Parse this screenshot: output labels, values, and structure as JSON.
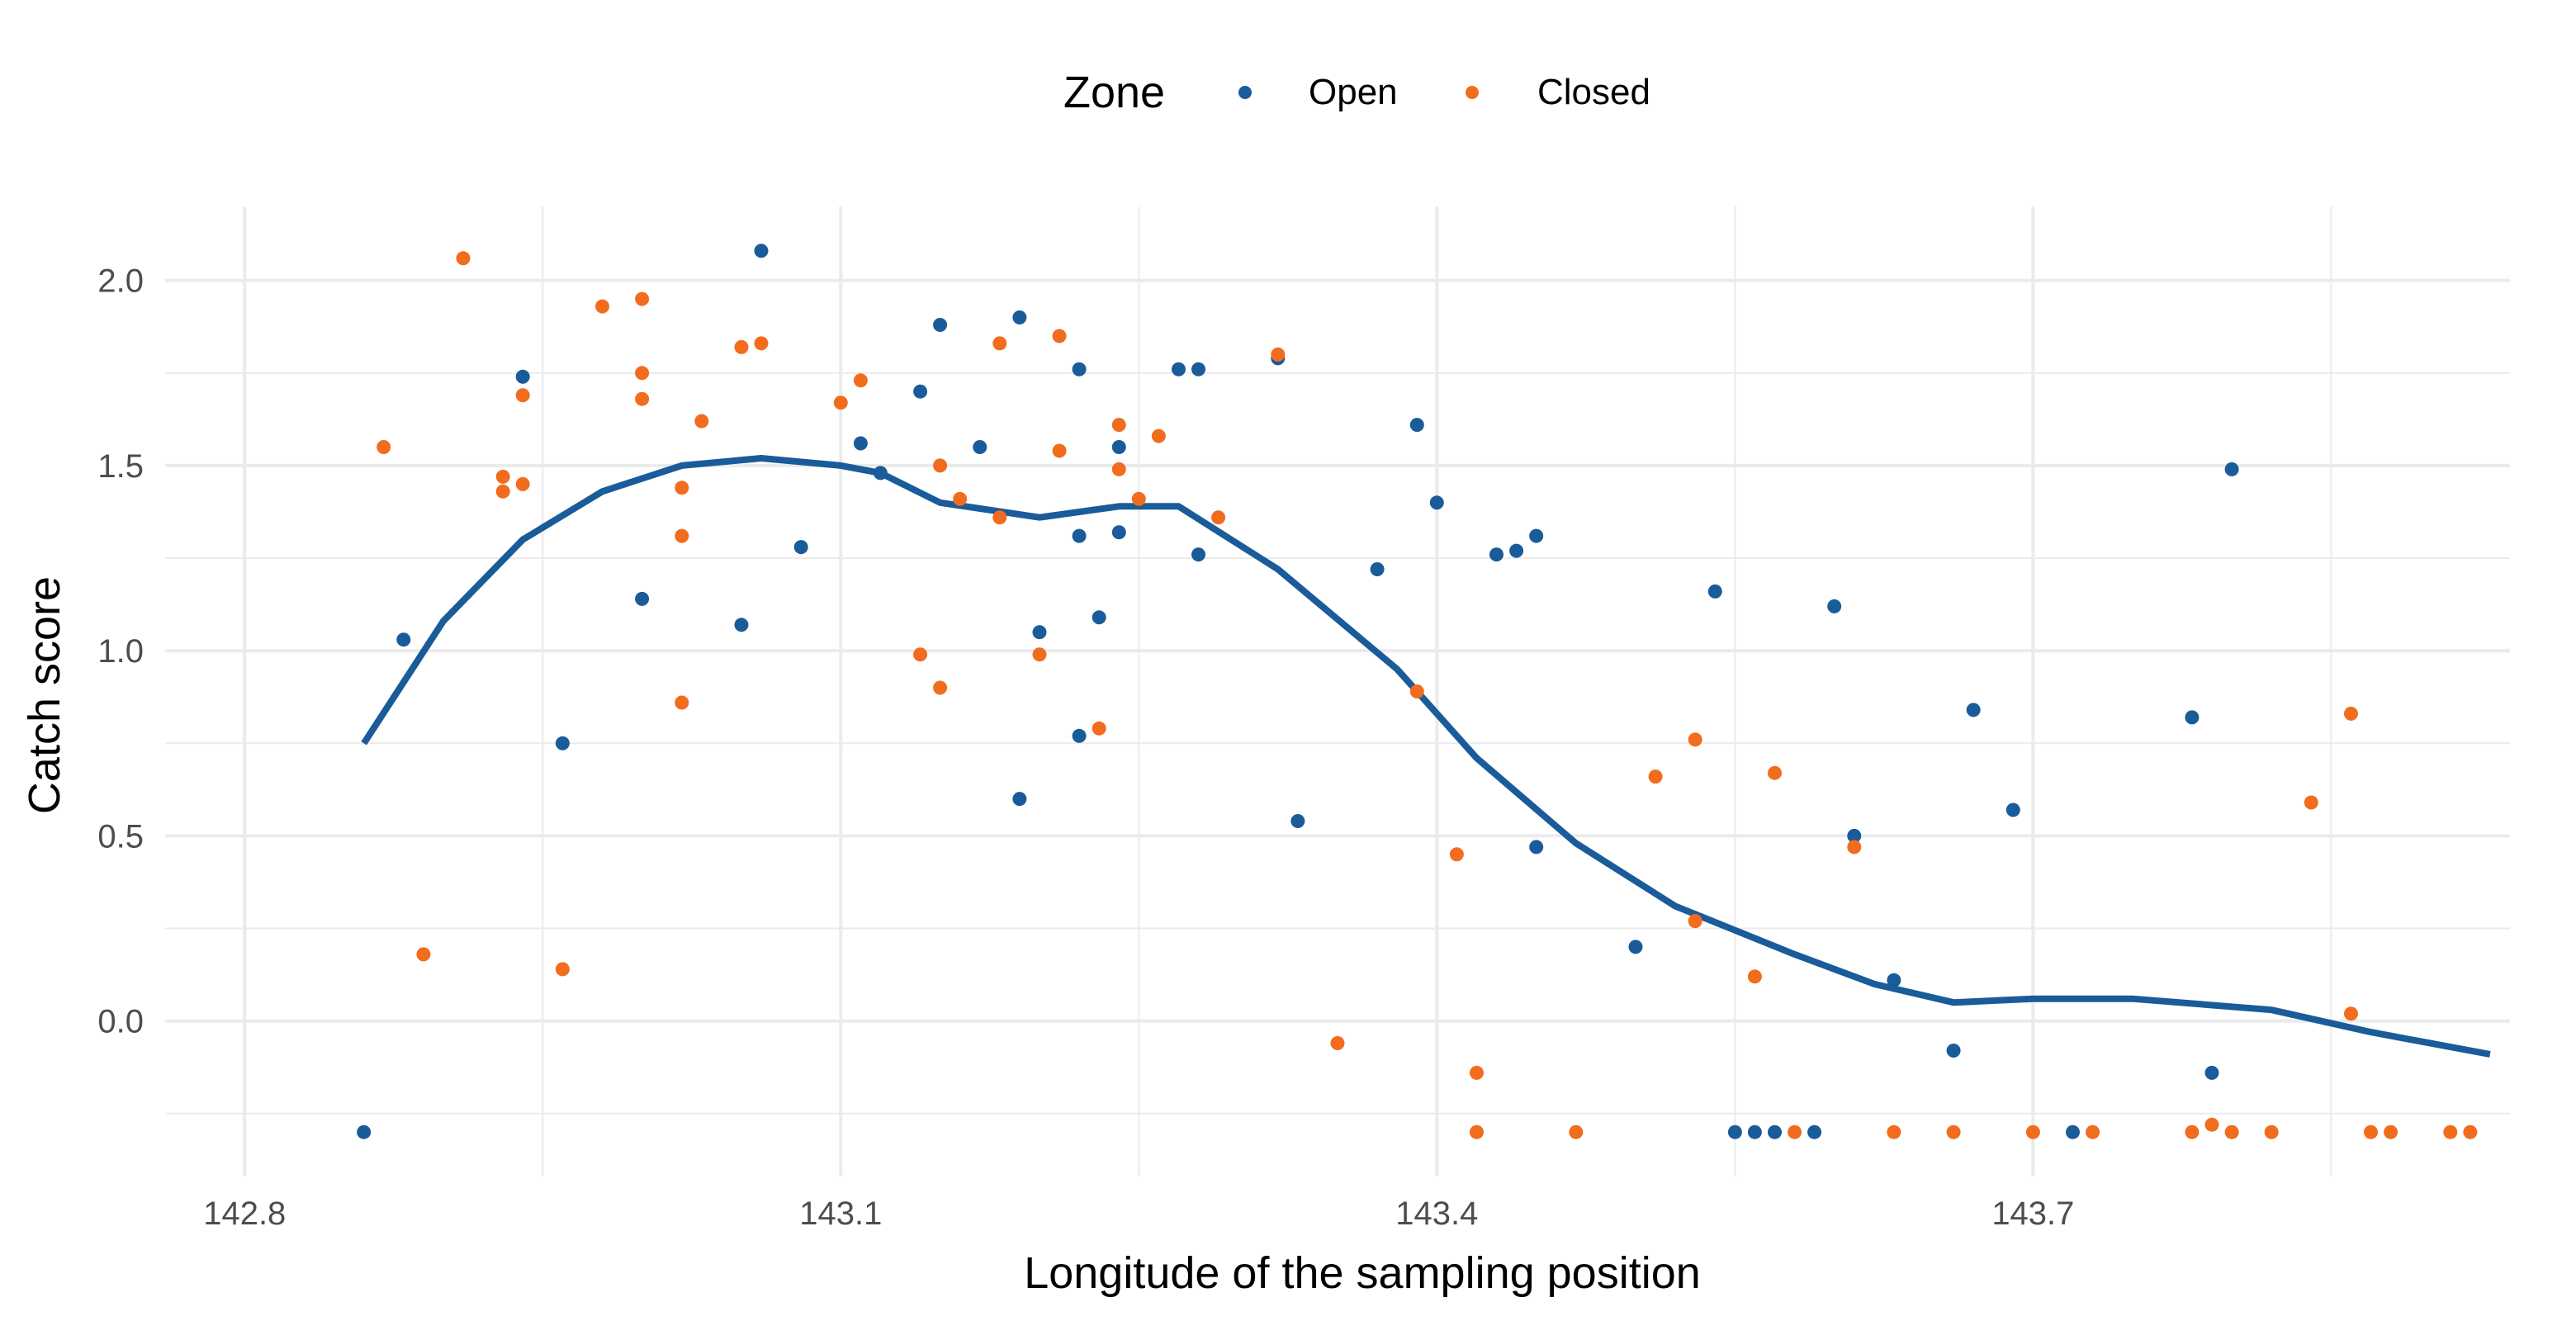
{
  "chart_data": {
    "type": "scatter",
    "title": "",
    "xlabel": "Longitude of the sampling position",
    "ylabel": "Catch score",
    "xlim": [
      142.76,
      143.94
    ],
    "ylim": [
      -0.42,
      2.2
    ],
    "x_ticks": [
      142.8,
      143.1,
      143.4,
      143.7
    ],
    "x_tick_labels": [
      "142.8",
      "143.1",
      "143.4",
      "143.7"
    ],
    "y_ticks": [
      0.0,
      0.5,
      1.0,
      1.5,
      2.0
    ],
    "y_tick_labels": [
      "0.0",
      "0.5",
      "1.0",
      "1.5",
      "2.0"
    ],
    "grid": true,
    "legend": {
      "title": "Zone",
      "position": "top",
      "entries": [
        {
          "label": "Open",
          "color": "#1a5b9a"
        },
        {
          "label": "Closed",
          "color": "#f26c1d"
        }
      ]
    },
    "series": [
      {
        "name": "Open",
        "color": "#1a5b9a",
        "points": [
          [
            142.86,
            -0.3
          ],
          [
            142.88,
            1.03
          ],
          [
            142.94,
            1.74
          ],
          [
            142.96,
            0.75
          ],
          [
            143.0,
            1.14
          ],
          [
            143.05,
            1.07
          ],
          [
            143.06,
            2.08
          ],
          [
            143.08,
            1.28
          ],
          [
            143.11,
            1.56
          ],
          [
            143.12,
            1.48
          ],
          [
            143.14,
            1.7
          ],
          [
            143.15,
            1.88
          ],
          [
            143.17,
            1.55
          ],
          [
            143.19,
            1.9
          ],
          [
            143.19,
            0.6
          ],
          [
            143.2,
            1.05
          ],
          [
            143.22,
            1.76
          ],
          [
            143.22,
            1.31
          ],
          [
            143.22,
            0.77
          ],
          [
            143.23,
            1.09
          ],
          [
            143.24,
            1.55
          ],
          [
            143.24,
            1.32
          ],
          [
            143.27,
            1.76
          ],
          [
            143.28,
            1.76
          ],
          [
            143.28,
            1.26
          ],
          [
            143.32,
            1.79
          ],
          [
            143.33,
            0.54
          ],
          [
            143.37,
            1.22
          ],
          [
            143.39,
            1.61
          ],
          [
            143.4,
            1.4
          ],
          [
            143.43,
            1.26
          ],
          [
            143.44,
            1.27
          ],
          [
            143.45,
            1.31
          ],
          [
            143.45,
            0.47
          ],
          [
            143.5,
            0.2
          ],
          [
            143.54,
            1.16
          ],
          [
            143.55,
            -0.3
          ],
          [
            143.56,
            -0.3
          ],
          [
            143.57,
            -0.3
          ],
          [
            143.59,
            -0.3
          ],
          [
            143.6,
            1.12
          ],
          [
            143.61,
            0.5
          ],
          [
            143.63,
            0.11
          ],
          [
            143.66,
            -0.08
          ],
          [
            143.67,
            0.84
          ],
          [
            143.69,
            0.57
          ],
          [
            143.72,
            -0.3
          ],
          [
            143.78,
            0.82
          ],
          [
            143.79,
            -0.14
          ],
          [
            143.8,
            1.49
          ]
        ]
      },
      {
        "name": "Closed",
        "color": "#f26c1d",
        "points": [
          [
            142.87,
            1.55
          ],
          [
            142.89,
            0.18
          ],
          [
            142.91,
            2.06
          ],
          [
            142.93,
            1.47
          ],
          [
            142.93,
            1.43
          ],
          [
            142.94,
            1.69
          ],
          [
            142.94,
            1.45
          ],
          [
            142.96,
            0.14
          ],
          [
            142.98,
            1.93
          ],
          [
            143.0,
            1.75
          ],
          [
            143.0,
            1.68
          ],
          [
            143.0,
            1.95
          ],
          [
            143.02,
            1.44
          ],
          [
            143.02,
            1.31
          ],
          [
            143.02,
            0.86
          ],
          [
            143.03,
            1.62
          ],
          [
            143.05,
            1.82
          ],
          [
            143.06,
            1.83
          ],
          [
            143.1,
            1.67
          ],
          [
            143.11,
            1.73
          ],
          [
            143.14,
            0.99
          ],
          [
            143.15,
            1.5
          ],
          [
            143.15,
            0.9
          ],
          [
            143.16,
            1.41
          ],
          [
            143.18,
            1.83
          ],
          [
            143.18,
            1.36
          ],
          [
            143.2,
            0.99
          ],
          [
            143.21,
            1.85
          ],
          [
            143.21,
            1.54
          ],
          [
            143.23,
            0.79
          ],
          [
            143.24,
            1.61
          ],
          [
            143.24,
            1.49
          ],
          [
            143.25,
            1.41
          ],
          [
            143.26,
            1.58
          ],
          [
            143.29,
            1.36
          ],
          [
            143.32,
            1.8
          ],
          [
            143.35,
            -0.06
          ],
          [
            143.39,
            0.89
          ],
          [
            143.41,
            0.45
          ],
          [
            143.42,
            -0.14
          ],
          [
            143.42,
            -0.3
          ],
          [
            143.47,
            -0.3
          ],
          [
            143.51,
            0.66
          ],
          [
            143.53,
            0.76
          ],
          [
            143.53,
            0.27
          ],
          [
            143.56,
            0.12
          ],
          [
            143.57,
            0.67
          ],
          [
            143.58,
            -0.3
          ],
          [
            143.61,
            0.47
          ],
          [
            143.63,
            -0.3
          ],
          [
            143.66,
            -0.3
          ],
          [
            143.7,
            -0.3
          ],
          [
            143.73,
            -0.3
          ],
          [
            143.78,
            -0.3
          ],
          [
            143.79,
            -0.28
          ],
          [
            143.8,
            -0.3
          ],
          [
            143.82,
            -0.3
          ],
          [
            143.84,
            0.59
          ],
          [
            143.86,
            0.83
          ],
          [
            143.86,
            0.02
          ],
          [
            143.87,
            -0.3
          ],
          [
            143.88,
            -0.3
          ],
          [
            143.91,
            -0.3
          ],
          [
            143.92,
            -0.3
          ]
        ]
      }
    ],
    "smooth": {
      "color": "#1a5b9a",
      "points": [
        [
          142.86,
          0.75
        ],
        [
          142.9,
          1.08
        ],
        [
          142.94,
          1.3
        ],
        [
          142.98,
          1.43
        ],
        [
          143.02,
          1.5
        ],
        [
          143.06,
          1.52
        ],
        [
          143.1,
          1.5
        ],
        [
          143.12,
          1.48
        ],
        [
          143.15,
          1.4
        ],
        [
          143.2,
          1.36
        ],
        [
          143.24,
          1.39
        ],
        [
          143.27,
          1.39
        ],
        [
          143.32,
          1.22
        ],
        [
          143.38,
          0.95
        ],
        [
          143.42,
          0.71
        ],
        [
          143.47,
          0.48
        ],
        [
          143.52,
          0.31
        ],
        [
          143.58,
          0.18
        ],
        [
          143.62,
          0.1
        ],
        [
          143.66,
          0.05
        ],
        [
          143.7,
          0.06
        ],
        [
          143.75,
          0.06
        ],
        [
          143.82,
          0.03
        ],
        [
          143.87,
          -0.03
        ],
        [
          143.93,
          -0.09
        ]
      ]
    }
  }
}
